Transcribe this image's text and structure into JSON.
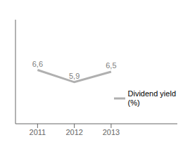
{
  "chart_data": {
    "type": "line",
    "x": [
      2011,
      2012,
      2013
    ],
    "series": [
      {
        "name": "Dividend yield\n(%)",
        "color": "#b0b0b0",
        "values": [
          6.6,
          5.9,
          6.5
        ],
        "value_labels": [
          "6,6",
          "5,9",
          "6,5"
        ]
      }
    ],
    "xlim": [
      2010.4,
      2014.8
    ],
    "xticks": [
      2011,
      2012,
      2013
    ],
    "ylim": [
      3.5,
      9.5
    ],
    "yticks": [],
    "tick_labels": "x",
    "data_labels": true,
    "legend": "lower right"
  }
}
